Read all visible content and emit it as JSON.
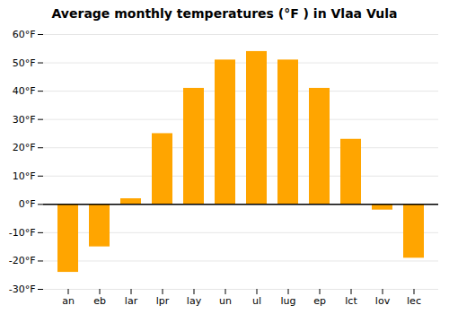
{
  "chart_data": {
    "type": "bar",
    "title": "Average monthly temperatures (°F ) in Vlaa Vula",
    "categories": [
      "an",
      "eb",
      "lar",
      "lpr",
      "lay",
      "un",
      "ul",
      "lug",
      "ep",
      "lct",
      "lov",
      "lec"
    ],
    "values": [
      -24,
      -15,
      2,
      25,
      41,
      51,
      54,
      51,
      41,
      23,
      -2,
      -19
    ],
    "color": "#FFA500",
    "ylim": [
      -30,
      60
    ],
    "yticks": [
      {
        "value": -30,
        "label": "-30°F"
      },
      {
        "value": -20,
        "label": "-20°F"
      },
      {
        "value": -10,
        "label": "-10°F"
      },
      {
        "value": 0,
        "label": "0°F"
      },
      {
        "value": 10,
        "label": "10°F"
      },
      {
        "value": 20,
        "label": "20°F"
      },
      {
        "value": 30,
        "label": "30°F"
      },
      {
        "value": 40,
        "label": "40°F"
      },
      {
        "value": 50,
        "label": "50°F"
      },
      {
        "value": 60,
        "label": "60°F"
      }
    ],
    "grid": true
  }
}
